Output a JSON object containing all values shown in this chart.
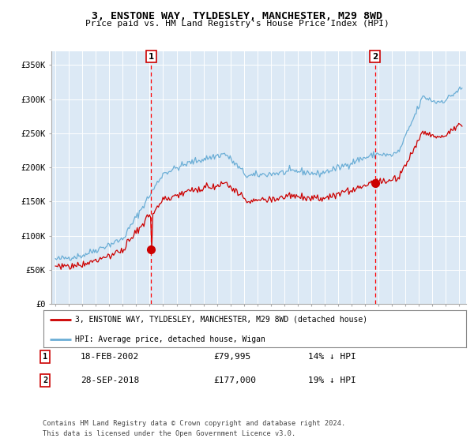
{
  "title": "3, ENSTONE WAY, TYLDESLEY, MANCHESTER, M29 8WD",
  "subtitle": "Price paid vs. HM Land Registry's House Price Index (HPI)",
  "ylim": [
    0,
    370000
  ],
  "yticks": [
    0,
    50000,
    100000,
    150000,
    200000,
    250000,
    300000,
    350000
  ],
  "ytick_labels": [
    "£0",
    "£50K",
    "£100K",
    "£150K",
    "£200K",
    "£250K",
    "£300K",
    "£350K"
  ],
  "hpi_color": "#6baed6",
  "price_color": "#cc0000",
  "bg_color": "#dce9f5",
  "marker1_date_x": 2002.12,
  "marker1_price": 79995,
  "marker1_label": "18-FEB-2002",
  "marker1_price_label": "£79,995",
  "marker1_pct": "14% ↓ HPI",
  "marker2_date_x": 2018.73,
  "marker2_price": 177000,
  "marker2_label": "28-SEP-2018",
  "marker2_price_label": "£177,000",
  "marker2_pct": "19% ↓ HPI",
  "legend_line1": "3, ENSTONE WAY, TYLDESLEY, MANCHESTER, M29 8WD (detached house)",
  "legend_line2": "HPI: Average price, detached house, Wigan",
  "footer1": "Contains HM Land Registry data © Crown copyright and database right 2024.",
  "footer2": "This data is licensed under the Open Government Licence v3.0.",
  "xmin": 1994.7,
  "xmax": 2025.5
}
